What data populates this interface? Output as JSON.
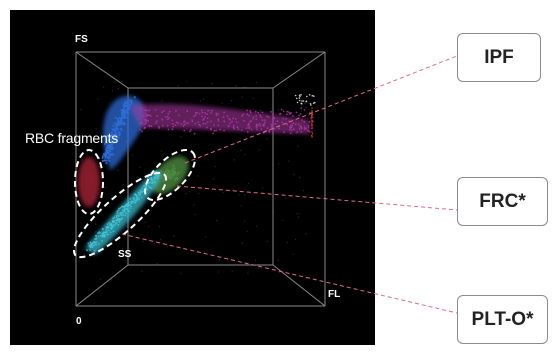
{
  "axes": {
    "fs_label": "FS",
    "fl_label": "FL",
    "ss_label": "SS",
    "origin_label": "0"
  },
  "regions": {
    "rbc_fragments_label": "RBC fragments"
  },
  "callouts": [
    {
      "label": "IPF"
    },
    {
      "label": "FRC*"
    },
    {
      "label": "PLT-O*"
    }
  ],
  "colors": {
    "background": "#000000",
    "rbc_cluster": "#2d6bd6",
    "ipf_cluster": "#b03aa8",
    "rbc_fragments": "#8a1d2c",
    "frc_cluster": "#4e8a3e",
    "plt_cluster": "#3fc6d8",
    "dashed_leader": "#e36b86",
    "box_border": "#8c8c8c"
  }
}
